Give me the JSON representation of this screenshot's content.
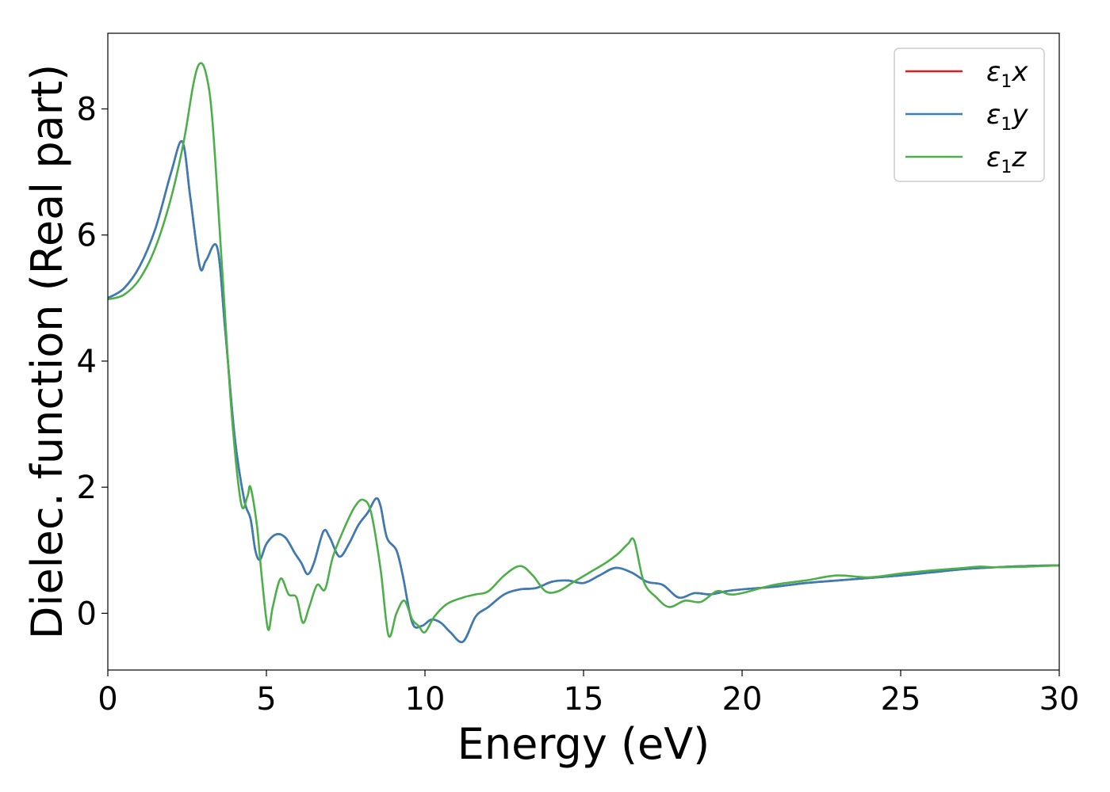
{
  "chart_data": {
    "type": "line",
    "xlabel": "Energy (eV)",
    "ylabel": "Dielec. function (Real part)",
    "xlim": [
      0,
      30
    ],
    "ylim": [
      -0.9,
      9.2
    ],
    "xticks": [
      0,
      5,
      10,
      15,
      20,
      25,
      30
    ],
    "yticks": [
      0,
      2,
      4,
      6,
      8
    ],
    "grid": false,
    "legend_position": "top-right",
    "series": [
      {
        "name": "ε1x",
        "color": "#e41a1c",
        "x": [
          0,
          0.5,
          1.0,
          1.5,
          2.0,
          2.35,
          2.6,
          2.9,
          3.1,
          3.45,
          3.7,
          4.0,
          4.3,
          4.5,
          4.65,
          4.8,
          5.0,
          5.3,
          5.6,
          5.9,
          6.1,
          6.3,
          6.5,
          6.8,
          7.0,
          7.3,
          7.6,
          7.9,
          8.2,
          8.45,
          8.6,
          8.8,
          9.1,
          9.3,
          9.6,
          9.9,
          10.2,
          10.5,
          10.8,
          11.2,
          11.6,
          12.0,
          12.5,
          13.0,
          13.5,
          14.0,
          14.5,
          15.0,
          15.5,
          16.0,
          16.5,
          17.0,
          17.5,
          18.0,
          18.5,
          19.0,
          19.5,
          20.0,
          21.0,
          22.0,
          23.0,
          24.0,
          25.0,
          26.0,
          27.0,
          28.0,
          29.0,
          30.0
        ],
        "y": [
          5.0,
          5.15,
          5.5,
          6.1,
          7.0,
          7.48,
          6.6,
          5.5,
          5.6,
          5.8,
          4.5,
          2.8,
          1.8,
          1.5,
          1.0,
          0.85,
          1.1,
          1.25,
          1.2,
          0.95,
          0.8,
          0.62,
          0.8,
          1.3,
          1.2,
          0.9,
          1.1,
          1.4,
          1.6,
          1.82,
          1.7,
          1.2,
          1.0,
          0.6,
          -0.15,
          -0.2,
          -0.1,
          -0.15,
          -0.3,
          -0.45,
          -0.05,
          0.1,
          0.3,
          0.38,
          0.4,
          0.5,
          0.52,
          0.48,
          0.6,
          0.72,
          0.65,
          0.5,
          0.45,
          0.25,
          0.32,
          0.3,
          0.35,
          0.38,
          0.42,
          0.48,
          0.52,
          0.56,
          0.6,
          0.65,
          0.7,
          0.73,
          0.75,
          0.76
        ]
      },
      {
        "name": "ε1y",
        "color": "#377eb8",
        "x": [
          0,
          0.5,
          1.0,
          1.5,
          2.0,
          2.35,
          2.6,
          2.9,
          3.1,
          3.45,
          3.7,
          4.0,
          4.3,
          4.5,
          4.65,
          4.8,
          5.0,
          5.3,
          5.6,
          5.9,
          6.1,
          6.3,
          6.5,
          6.8,
          7.0,
          7.3,
          7.6,
          7.9,
          8.2,
          8.45,
          8.6,
          8.8,
          9.1,
          9.3,
          9.6,
          9.9,
          10.2,
          10.5,
          10.8,
          11.2,
          11.6,
          12.0,
          12.5,
          13.0,
          13.5,
          14.0,
          14.5,
          15.0,
          15.5,
          16.0,
          16.5,
          17.0,
          17.5,
          18.0,
          18.5,
          19.0,
          19.5,
          20.0,
          21.0,
          22.0,
          23.0,
          24.0,
          25.0,
          26.0,
          27.0,
          28.0,
          29.0,
          30.0
        ],
        "y": [
          5.0,
          5.15,
          5.5,
          6.1,
          7.0,
          7.48,
          6.6,
          5.5,
          5.6,
          5.8,
          4.5,
          2.8,
          1.8,
          1.5,
          1.0,
          0.85,
          1.1,
          1.25,
          1.2,
          0.95,
          0.8,
          0.62,
          0.8,
          1.3,
          1.2,
          0.9,
          1.1,
          1.4,
          1.6,
          1.82,
          1.7,
          1.2,
          1.0,
          0.6,
          -0.15,
          -0.2,
          -0.1,
          -0.15,
          -0.3,
          -0.45,
          -0.05,
          0.1,
          0.3,
          0.38,
          0.4,
          0.5,
          0.52,
          0.48,
          0.6,
          0.72,
          0.65,
          0.5,
          0.45,
          0.25,
          0.32,
          0.3,
          0.35,
          0.38,
          0.42,
          0.48,
          0.52,
          0.56,
          0.6,
          0.65,
          0.7,
          0.73,
          0.75,
          0.76
        ]
      },
      {
        "name": "ε1z",
        "color": "#4daf4a",
        "x": [
          0,
          0.5,
          1.0,
          1.5,
          2.0,
          2.4,
          2.7,
          2.9,
          3.1,
          3.3,
          3.6,
          3.9,
          4.2,
          4.4,
          4.5,
          4.7,
          4.85,
          5.05,
          5.2,
          5.45,
          5.7,
          5.95,
          6.15,
          6.35,
          6.6,
          6.85,
          7.1,
          7.5,
          7.8,
          8.05,
          8.3,
          8.6,
          8.85,
          9.1,
          9.35,
          9.6,
          9.8,
          10.0,
          10.3,
          10.7,
          11.2,
          11.6,
          12.0,
          12.5,
          13.0,
          13.4,
          13.8,
          14.2,
          14.7,
          15.2,
          15.7,
          16.1,
          16.4,
          16.6,
          16.9,
          17.3,
          17.7,
          18.2,
          18.7,
          19.2,
          19.6,
          20.0,
          21.0,
          22.0,
          23.0,
          24.0,
          25.0,
          26.0,
          27.0,
          27.5,
          28.0,
          29.0,
          30.0
        ],
        "y": [
          4.98,
          5.05,
          5.3,
          5.8,
          6.6,
          7.5,
          8.4,
          8.72,
          8.55,
          7.8,
          5.5,
          3.2,
          1.75,
          1.85,
          2.0,
          1.4,
          0.6,
          -0.25,
          0.1,
          0.55,
          0.3,
          0.25,
          -0.15,
          0.1,
          0.45,
          0.38,
          0.9,
          1.4,
          1.7,
          1.8,
          1.6,
          0.7,
          -0.35,
          0.0,
          0.2,
          -0.1,
          -0.2,
          -0.3,
          -0.05,
          0.15,
          0.25,
          0.3,
          0.35,
          0.6,
          0.75,
          0.6,
          0.35,
          0.35,
          0.5,
          0.65,
          0.8,
          0.95,
          1.1,
          1.15,
          0.5,
          0.25,
          0.1,
          0.2,
          0.18,
          0.35,
          0.3,
          0.32,
          0.45,
          0.52,
          0.6,
          0.57,
          0.63,
          0.68,
          0.72,
          0.74,
          0.73,
          0.74,
          0.76
        ]
      }
    ]
  }
}
